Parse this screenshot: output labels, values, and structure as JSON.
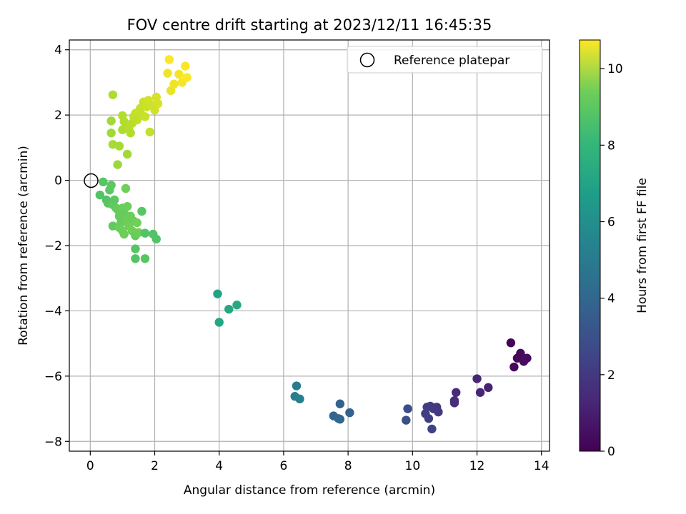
{
  "chart_data": {
    "type": "scatter",
    "title": "FOV centre drift starting at 2023/12/11 16:45:35",
    "xlabel": "Angular distance from reference (arcmin)",
    "ylabel": "Rotation from reference (arcmin)",
    "xlim": [
      -0.65,
      14.25
    ],
    "ylim": [
      -8.3,
      4.3
    ],
    "xticks": [
      0,
      2,
      4,
      6,
      8,
      10,
      12,
      14
    ],
    "yticks": [
      -8,
      -6,
      -4,
      -2,
      0,
      2,
      4
    ],
    "grid": true,
    "legend": {
      "position": "upper-right",
      "entries": [
        {
          "label": "Reference platepar",
          "marker": "hollow-circle",
          "x": 0,
          "y": 0
        }
      ]
    },
    "colorbar": {
      "label": "Hours from first FF file",
      "colormap": "viridis",
      "range": [
        0,
        10.75
      ],
      "ticks": [
        0,
        2,
        4,
        6,
        8,
        10
      ]
    },
    "points": [
      {
        "x": 13.05,
        "y": -4.98,
        "c": 0.1
      },
      {
        "x": 13.35,
        "y": -5.3,
        "c": 0.2
      },
      {
        "x": 13.25,
        "y": -5.45,
        "c": 0.2
      },
      {
        "x": 13.55,
        "y": -5.45,
        "c": 0.3
      },
      {
        "x": 13.45,
        "y": -5.55,
        "c": 0.3
      },
      {
        "x": 13.15,
        "y": -5.72,
        "c": 0.2
      },
      {
        "x": 12.35,
        "y": -6.35,
        "c": 1.0
      },
      {
        "x": 12.0,
        "y": -6.08,
        "c": 1.1
      },
      {
        "x": 12.1,
        "y": -6.5,
        "c": 1.1
      },
      {
        "x": 11.35,
        "y": -6.5,
        "c": 1.3
      },
      {
        "x": 11.3,
        "y": -6.75,
        "c": 1.4
      },
      {
        "x": 11.3,
        "y": -6.82,
        "c": 1.4
      },
      {
        "x": 10.55,
        "y": -6.92,
        "c": 1.8
      },
      {
        "x": 10.75,
        "y": -6.95,
        "c": 1.7
      },
      {
        "x": 10.45,
        "y": -6.95,
        "c": 1.9
      },
      {
        "x": 10.8,
        "y": -7.1,
        "c": 1.8
      },
      {
        "x": 10.65,
        "y": -7.0,
        "c": 1.8
      },
      {
        "x": 10.4,
        "y": -7.15,
        "c": 2.0
      },
      {
        "x": 10.5,
        "y": -7.3,
        "c": 2.0
      },
      {
        "x": 10.6,
        "y": -7.62,
        "c": 2.1
      },
      {
        "x": 9.85,
        "y": -7.0,
        "c": 2.5
      },
      {
        "x": 9.8,
        "y": -7.35,
        "c": 2.6
      },
      {
        "x": 8.05,
        "y": -7.12,
        "c": 3.3
      },
      {
        "x": 7.75,
        "y": -6.85,
        "c": 3.4
      },
      {
        "x": 7.55,
        "y": -7.22,
        "c": 3.5
      },
      {
        "x": 7.75,
        "y": -7.32,
        "c": 3.5
      },
      {
        "x": 7.7,
        "y": -7.3,
        "c": 3.6
      },
      {
        "x": 6.4,
        "y": -6.3,
        "c": 4.5
      },
      {
        "x": 6.35,
        "y": -6.62,
        "c": 4.6
      },
      {
        "x": 6.5,
        "y": -6.7,
        "c": 4.7
      },
      {
        "x": 3.95,
        "y": -3.48,
        "c": 6.2
      },
      {
        "x": 4.0,
        "y": -4.35,
        "c": 6.3
      },
      {
        "x": 4.3,
        "y": -3.95,
        "c": 6.4
      },
      {
        "x": 4.55,
        "y": -3.82,
        "c": 6.5
      },
      {
        "x": 0.3,
        "y": -0.45,
        "c": 7.8
      },
      {
        "x": 0.4,
        "y": -0.05,
        "c": 7.9
      },
      {
        "x": 0.5,
        "y": -0.6,
        "c": 7.8
      },
      {
        "x": 0.55,
        "y": -0.7,
        "c": 7.9
      },
      {
        "x": 0.6,
        "y": -0.3,
        "c": 8.0
      },
      {
        "x": 0.65,
        "y": -0.15,
        "c": 8.0
      },
      {
        "x": 0.7,
        "y": -0.75,
        "c": 8.1
      },
      {
        "x": 0.75,
        "y": -0.6,
        "c": 8.0
      },
      {
        "x": 0.8,
        "y": -0.85,
        "c": 8.1
      },
      {
        "x": 0.85,
        "y": -0.9,
        "c": 8.2
      },
      {
        "x": 0.7,
        "y": -1.4,
        "c": 8.1
      },
      {
        "x": 0.9,
        "y": -1.1,
        "c": 8.2
      },
      {
        "x": 0.95,
        "y": -1.3,
        "c": 8.2
      },
      {
        "x": 1.0,
        "y": -0.85,
        "c": 8.3
      },
      {
        "x": 1.05,
        "y": -1.0,
        "c": 8.2
      },
      {
        "x": 1.1,
        "y": -1.2,
        "c": 8.3
      },
      {
        "x": 1.15,
        "y": -0.8,
        "c": 8.3
      },
      {
        "x": 1.2,
        "y": -1.4,
        "c": 8.4
      },
      {
        "x": 1.25,
        "y": -1.1,
        "c": 8.3
      },
      {
        "x": 1.3,
        "y": -1.55,
        "c": 8.4
      },
      {
        "x": 1.35,
        "y": -1.25,
        "c": 8.3
      },
      {
        "x": 1.4,
        "y": -1.7,
        "c": 8.2
      },
      {
        "x": 1.45,
        "y": -1.3,
        "c": 8.4
      },
      {
        "x": 1.5,
        "y": -1.6,
        "c": 8.3
      },
      {
        "x": 1.0,
        "y": -1.55,
        "c": 8.4
      },
      {
        "x": 1.05,
        "y": -1.65,
        "c": 8.3
      },
      {
        "x": 0.9,
        "y": -1.45,
        "c": 8.3
      },
      {
        "x": 1.1,
        "y": -0.25,
        "c": 8.4
      },
      {
        "x": 1.6,
        "y": -0.95,
        "c": 7.9
      },
      {
        "x": 1.7,
        "y": -1.62,
        "c": 7.8
      },
      {
        "x": 1.95,
        "y": -1.65,
        "c": 7.8
      },
      {
        "x": 2.05,
        "y": -1.8,
        "c": 7.8
      },
      {
        "x": 1.4,
        "y": -2.1,
        "c": 7.9
      },
      {
        "x": 1.4,
        "y": -2.4,
        "c": 7.8
      },
      {
        "x": 1.7,
        "y": -2.4,
        "c": 7.9
      },
      {
        "x": 0.9,
        "y": 1.05,
        "c": 9.3
      },
      {
        "x": 0.7,
        "y": 1.1,
        "c": 9.3
      },
      {
        "x": 0.65,
        "y": 1.45,
        "c": 9.2
      },
      {
        "x": 0.65,
        "y": 1.82,
        "c": 9.2
      },
      {
        "x": 0.85,
        "y": 0.48,
        "c": 9.1
      },
      {
        "x": 1.15,
        "y": 0.8,
        "c": 9.2
      },
      {
        "x": 1.0,
        "y": 1.55,
        "c": 9.4
      },
      {
        "x": 1.05,
        "y": 1.8,
        "c": 9.5
      },
      {
        "x": 1.0,
        "y": 1.98,
        "c": 9.5
      },
      {
        "x": 1.2,
        "y": 1.62,
        "c": 9.6
      },
      {
        "x": 1.25,
        "y": 1.45,
        "c": 9.5
      },
      {
        "x": 1.3,
        "y": 1.75,
        "c": 9.6
      },
      {
        "x": 1.35,
        "y": 1.95,
        "c": 9.7
      },
      {
        "x": 1.4,
        "y": 2.05,
        "c": 9.8
      },
      {
        "x": 1.45,
        "y": 1.85,
        "c": 9.7
      },
      {
        "x": 1.5,
        "y": 2.1,
        "c": 9.8
      },
      {
        "x": 1.55,
        "y": 2.2,
        "c": 9.8
      },
      {
        "x": 1.6,
        "y": 2.0,
        "c": 9.8
      },
      {
        "x": 1.65,
        "y": 2.4,
        "c": 9.9
      },
      {
        "x": 1.7,
        "y": 1.95,
        "c": 9.9
      },
      {
        "x": 1.75,
        "y": 2.25,
        "c": 9.9
      },
      {
        "x": 1.8,
        "y": 2.45,
        "c": 10.0
      },
      {
        "x": 1.85,
        "y": 1.48,
        "c": 9.8
      },
      {
        "x": 1.95,
        "y": 2.3,
        "c": 10.0
      },
      {
        "x": 2.0,
        "y": 2.15,
        "c": 10.0
      },
      {
        "x": 2.05,
        "y": 2.55,
        "c": 10.1
      },
      {
        "x": 2.1,
        "y": 2.35,
        "c": 10.1
      },
      {
        "x": 0.7,
        "y": 2.62,
        "c": 9.4
      },
      {
        "x": 2.4,
        "y": 3.28,
        "c": 10.5
      },
      {
        "x": 2.45,
        "y": 3.7,
        "c": 10.7
      },
      {
        "x": 2.5,
        "y": 2.75,
        "c": 10.4
      },
      {
        "x": 2.6,
        "y": 2.95,
        "c": 10.5
      },
      {
        "x": 2.75,
        "y": 3.25,
        "c": 10.6
      },
      {
        "x": 2.85,
        "y": 3.0,
        "c": 10.6
      },
      {
        "x": 2.95,
        "y": 3.5,
        "c": 10.7
      },
      {
        "x": 3.0,
        "y": 3.15,
        "c": 10.7
      }
    ]
  }
}
